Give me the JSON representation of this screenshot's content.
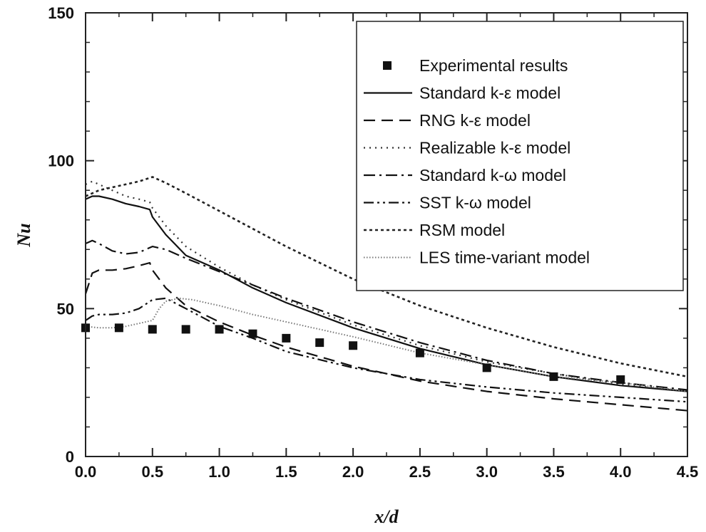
{
  "chart_data": {
    "type": "line",
    "title": "",
    "xlabel": "x/d",
    "ylabel": "Nu",
    "xlim": [
      0,
      4.5
    ],
    "ylim": [
      0,
      150
    ],
    "xticks": [
      "0.0",
      "0.5",
      "1.0",
      "1.5",
      "2.0",
      "2.5",
      "3.0",
      "3.5",
      "4.0",
      "4.5"
    ],
    "yticks": [
      "0",
      "50",
      "100",
      "150"
    ],
    "legend_position": "top-right",
    "series": [
      {
        "name": "Experimental results",
        "style": "marker",
        "x": [
          0.0,
          0.25,
          0.5,
          0.75,
          1.0,
          1.25,
          1.5,
          1.75,
          2.0,
          2.5,
          3.0,
          3.5,
          4.0
        ],
        "y": [
          43.5,
          43.5,
          43,
          43,
          43,
          41.5,
          40,
          38.5,
          37.5,
          35,
          30,
          27,
          26
        ]
      },
      {
        "name": "Standard k-ε model",
        "style": "solid",
        "x": [
          0.0,
          0.05,
          0.1,
          0.2,
          0.3,
          0.4,
          0.48,
          0.5,
          0.6,
          0.75,
          1.0,
          1.25,
          1.5,
          2.0,
          2.5,
          3.0,
          3.5,
          4.0,
          4.5
        ],
        "y": [
          87,
          88,
          88,
          87,
          85.5,
          84.5,
          83.5,
          81,
          75,
          68,
          63,
          57,
          52,
          43.5,
          36.5,
          31,
          27,
          24,
          22
        ]
      },
      {
        "name": "RNG k-ε model",
        "style": "dashed",
        "x": [
          0.0,
          0.05,
          0.1,
          0.2,
          0.3,
          0.4,
          0.48,
          0.5,
          0.6,
          0.75,
          1.0,
          1.25,
          1.5,
          2.0,
          2.5,
          3.0,
          3.5,
          4.0,
          4.5
        ],
        "y": [
          55,
          62,
          63,
          63,
          63.5,
          64.5,
          65.5,
          63,
          57,
          51,
          45.5,
          41,
          37,
          30.5,
          25.5,
          22,
          19.5,
          17.5,
          15.5
        ]
      },
      {
        "name": "Realizable k-ε model",
        "style": "dotted",
        "x": [
          0.0,
          0.05,
          0.1,
          0.2,
          0.3,
          0.4,
          0.48,
          0.5,
          0.6,
          0.75,
          1.0,
          1.25,
          1.5,
          2.0,
          2.5,
          3.0,
          3.5,
          4.0,
          4.5
        ],
        "y": [
          92,
          93,
          92,
          90,
          88,
          87,
          86,
          84,
          78,
          71,
          64,
          58,
          53,
          44.5,
          37.5,
          32,
          28,
          24.5,
          22
        ]
      },
      {
        "name": "Standard k-ω model",
        "style": "dashdot",
        "x": [
          0.0,
          0.05,
          0.1,
          0.2,
          0.3,
          0.4,
          0.5,
          0.6,
          0.75,
          1.0,
          1.25,
          1.5,
          2.0,
          2.5,
          3.0,
          3.5,
          4.0,
          4.5
        ],
        "y": [
          72,
          73,
          72,
          69.5,
          68.5,
          69,
          71,
          70,
          67,
          62.5,
          58,
          53.5,
          45.5,
          38.5,
          32.5,
          28,
          25,
          22.5
        ]
      },
      {
        "name": "SST k-ω model",
        "style": "dashdotdot",
        "x": [
          0.0,
          0.05,
          0.1,
          0.2,
          0.3,
          0.4,
          0.5,
          0.6,
          0.75,
          1.0,
          1.25,
          1.5,
          2.0,
          2.5,
          3.0,
          3.5,
          4.0,
          4.5
        ],
        "y": [
          46,
          47.5,
          48,
          48,
          48.5,
          50,
          53,
          53.5,
          50,
          44,
          40,
          35.5,
          30,
          26,
          23.5,
          21.5,
          20,
          18.5
        ]
      },
      {
        "name": "RSM model",
        "style": "shortdash",
        "x": [
          0.0,
          0.05,
          0.1,
          0.2,
          0.3,
          0.4,
          0.5,
          0.6,
          0.75,
          1.0,
          1.25,
          1.5,
          2.0,
          2.5,
          3.0,
          3.5,
          4.0,
          4.5
        ],
        "y": [
          88,
          89,
          90,
          91,
          92,
          93,
          94.5,
          92.5,
          89,
          83,
          77,
          71,
          60,
          51,
          43.5,
          37,
          31.5,
          27
        ]
      },
      {
        "name": "LES time-variant model",
        "style": "fine-dotted",
        "x": [
          0.0,
          0.1,
          0.2,
          0.3,
          0.4,
          0.5,
          0.55,
          0.6,
          0.7,
          0.8,
          1.0,
          1.25,
          1.5,
          1.75,
          2.0,
          2.5,
          3.0,
          3.5,
          4.0,
          4.5
        ],
        "y": [
          44,
          43.5,
          43.5,
          44,
          45,
          46,
          50,
          52.5,
          53.5,
          53,
          51,
          48,
          45.5,
          43,
          40.5,
          35,
          31,
          27,
          25,
          22
        ]
      }
    ]
  }
}
